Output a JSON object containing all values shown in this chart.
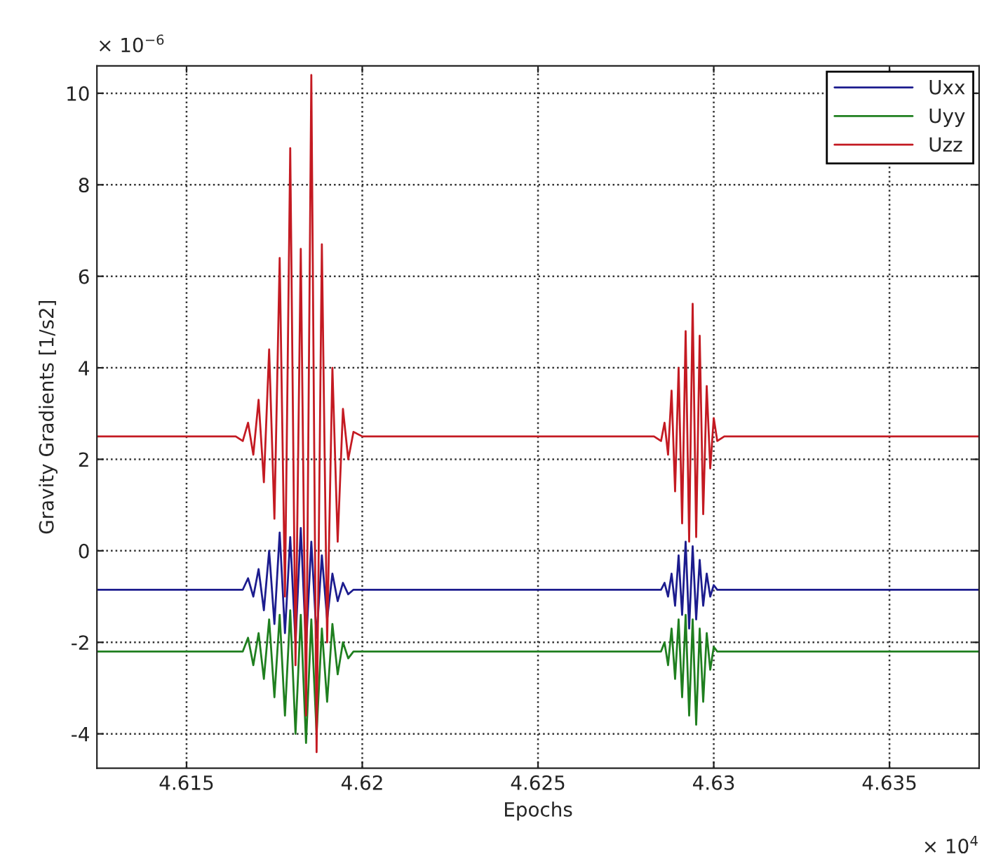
{
  "chart_data": {
    "type": "line",
    "xlabel": "Epochs",
    "ylabel": "Gravity Gradients [1/s2]",
    "annotations": [
      "× 10$^{−6}$",
      "× 10$^{4}$"
    ],
    "x": [
      4.61245,
      4.6164,
      4.6166,
      4.61675,
      4.6169,
      4.61705,
      4.6172,
      4.61735,
      4.6175,
      4.61765,
      4.6178,
      4.61795,
      4.6181,
      4.61825,
      4.6184,
      4.61855,
      4.6187,
      4.61885,
      4.619,
      4.61915,
      4.6193,
      4.61945,
      4.6196,
      4.61975,
      4.62,
      4.6283,
      4.6285,
      4.6286,
      4.6287,
      4.6288,
      4.6289,
      4.629,
      4.6291,
      4.6292,
      4.6293,
      4.6294,
      4.6295,
      4.6296,
      4.6297,
      4.6298,
      4.6299,
      4.63,
      4.6301,
      4.6303,
      4.63755
    ],
    "series": [
      {
        "name": "Uxx",
        "color": "#1c1c8e",
        "values": [
          -0.85,
          -0.85,
          -0.85,
          -0.6,
          -1.0,
          -0.4,
          -1.3,
          0.0,
          -1.6,
          0.4,
          -1.8,
          0.3,
          -2.0,
          0.5,
          -2.1,
          0.2,
          -1.9,
          -0.1,
          -1.5,
          -0.5,
          -1.1,
          -0.7,
          -0.95,
          -0.85,
          -0.85,
          -0.85,
          -0.85,
          -0.7,
          -1.0,
          -0.5,
          -1.2,
          -0.1,
          -1.4,
          0.2,
          -1.7,
          0.1,
          -1.5,
          -0.2,
          -1.2,
          -0.5,
          -1.0,
          -0.75,
          -0.85,
          -0.85,
          -0.85
        ]
      },
      {
        "name": "Uyy",
        "color": "#1f7f1f",
        "values": [
          -2.2,
          -2.2,
          -2.2,
          -1.9,
          -2.5,
          -1.8,
          -2.8,
          -1.5,
          -3.2,
          -1.4,
          -3.6,
          -1.3,
          -4.0,
          -1.4,
          -4.2,
          -1.5,
          -4.0,
          -1.7,
          -3.3,
          -1.6,
          -2.7,
          -2.0,
          -2.35,
          -2.2,
          -2.2,
          -2.2,
          -2.2,
          -2.0,
          -2.5,
          -1.7,
          -2.8,
          -1.5,
          -3.2,
          -1.4,
          -3.6,
          -1.5,
          -3.8,
          -1.7,
          -3.3,
          -1.8,
          -2.6,
          -2.1,
          -2.2,
          -2.2,
          -2.2
        ]
      },
      {
        "name": "Uzz",
        "color": "#c41a22",
        "values": [
          2.5,
          2.5,
          2.4,
          2.8,
          2.1,
          3.3,
          1.5,
          4.4,
          0.7,
          6.4,
          -1.0,
          8.8,
          -2.5,
          6.6,
          -3.6,
          10.4,
          -4.4,
          6.7,
          -2.0,
          4.0,
          0.2,
          3.1,
          2.0,
          2.6,
          2.5,
          2.5,
          2.4,
          2.8,
          2.1,
          3.5,
          1.3,
          4.0,
          0.6,
          4.8,
          0.2,
          5.4,
          0.3,
          4.7,
          0.8,
          3.6,
          1.8,
          2.9,
          2.4,
          2.5,
          2.5
        ]
      }
    ],
    "xlim": [
      4.61245,
      4.63755
    ],
    "xticks": [
      4.615,
      4.62,
      4.625,
      4.63,
      4.635
    ],
    "ylim": [
      -4.75,
      10.6
    ],
    "yticks": [
      -4,
      -2,
      0,
      2,
      4,
      6,
      8,
      10
    ],
    "grid": true,
    "legend": "top right",
    "marker": "none",
    "line_style": "solid"
  }
}
